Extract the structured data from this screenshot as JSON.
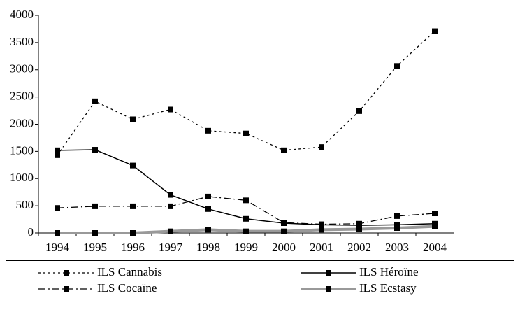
{
  "chart_data": {
    "type": "line",
    "categories": [
      "1994",
      "1995",
      "1996",
      "1997",
      "1998",
      "1999",
      "2000",
      "2001",
      "2002",
      "2003",
      "2004"
    ],
    "series": [
      {
        "name": "ILS Cannabis",
        "color": "#000000",
        "dash": "dotted",
        "values": [
          1430,
          2420,
          2090,
          2270,
          1880,
          1830,
          1520,
          1580,
          2240,
          3070,
          3710
        ]
      },
      {
        "name": "ILS Héroïne",
        "color": "#000000",
        "dash": "solid",
        "values": [
          1520,
          1530,
          1240,
          700,
          440,
          260,
          180,
          150,
          140,
          150,
          170
        ]
      },
      {
        "name": "ILS Cocaïne",
        "color": "#000000",
        "dash": "dashdot",
        "values": [
          460,
          490,
          490,
          490,
          670,
          600,
          190,
          160,
          170,
          310,
          360
        ]
      },
      {
        "name": "ILS Ecstasy",
        "color": "#999999",
        "dash": "thick",
        "values": [
          0,
          0,
          0,
          30,
          60,
          30,
          30,
          60,
          70,
          90,
          120
        ]
      }
    ],
    "ylim": [
      0,
      4000
    ],
    "yticks": [
      0,
      500,
      1000,
      1500,
      2000,
      2500,
      3000,
      3500,
      4000
    ],
    "legend": "bottom"
  }
}
